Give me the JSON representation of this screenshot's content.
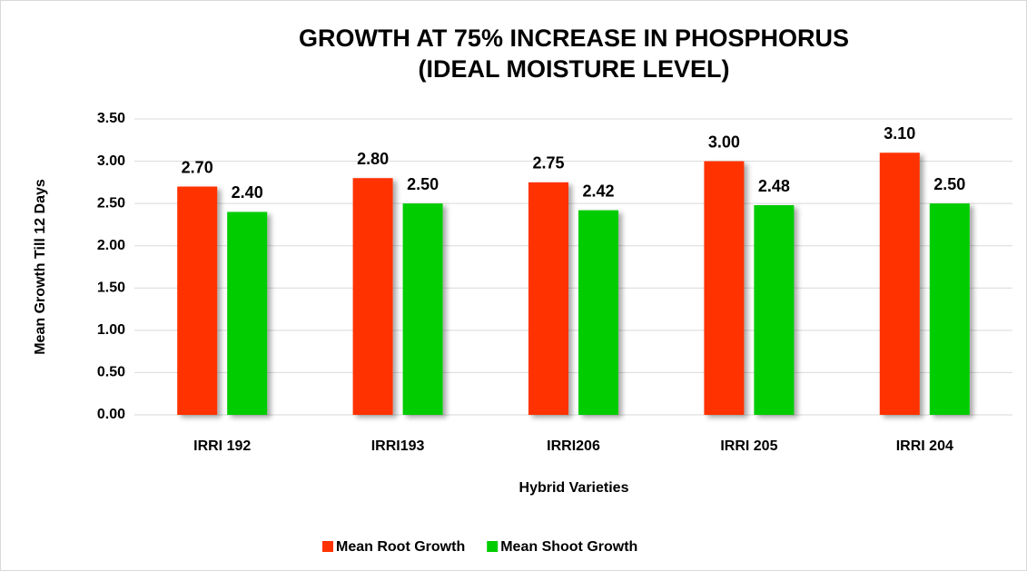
{
  "chart_data": {
    "type": "bar",
    "title": [
      "GROWTH AT 75% INCREASE IN PHOSPHORUS",
      "(IDEAL MOISTURE LEVEL)"
    ],
    "x_label": "Hybrid Varieties",
    "y_label": "Mean Growth Till 12 Days",
    "categories": [
      "IRRI 192",
      "IRRI193",
      "IRRI206",
      "IRRI 205",
      "IRRI 204"
    ],
    "series": [
      {
        "name": "Mean Root Growth",
        "color": "#ff3300",
        "values": [
          2.7,
          2.8,
          2.75,
          3.0,
          3.1
        ],
        "value_labels": [
          "2.70",
          "2.80",
          "2.75",
          "3.00",
          "3.10"
        ]
      },
      {
        "name": "Mean Shoot Growth",
        "color": "#00cc00",
        "values": [
          2.4,
          2.5,
          2.42,
          2.48,
          2.5
        ],
        "value_labels": [
          "2.40",
          "2.50",
          "2.42",
          "2.48",
          "2.50"
        ]
      }
    ],
    "ylim": [
      0,
      3.5
    ],
    "yticks": [
      {
        "value": 0,
        "label": "0.00"
      },
      {
        "value": 0.5,
        "label": "0.50"
      },
      {
        "value": 1,
        "label": "1.00"
      },
      {
        "value": 1.5,
        "label": "1.50"
      },
      {
        "value": 2,
        "label": "2.00"
      },
      {
        "value": 2.5,
        "label": "2.50"
      },
      {
        "value": 3,
        "label": "3.00"
      },
      {
        "value": 3.5,
        "label": "3.50"
      }
    ],
    "grid": true,
    "legend": "bottom"
  }
}
